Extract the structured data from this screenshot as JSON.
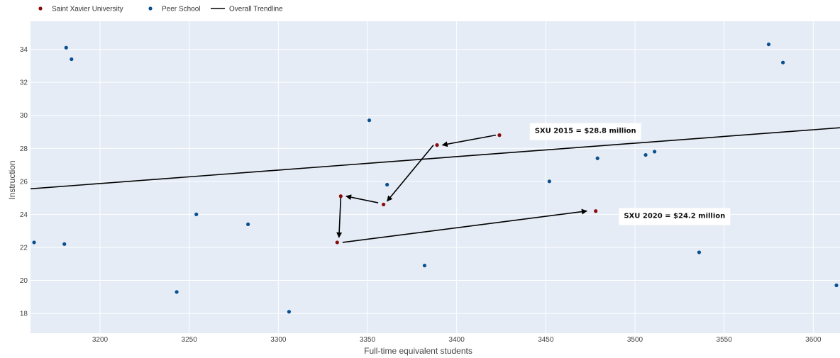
{
  "colors": {
    "plot_bg": "#e5ecf6",
    "grid": "#ffffff",
    "sxu": "#8b0a0a",
    "peer": "#0a4f8f",
    "trend": "#000000",
    "arrow": "#000000",
    "label_bg": "#ffffff"
  },
  "chart_data": {
    "type": "scatter",
    "xlabel": "Full-time equivalent students",
    "ylabel": "Instruction",
    "xlim": [
      3161,
      3615
    ],
    "ylim": [
      16.8,
      35.7
    ],
    "xticks": [
      3200,
      3250,
      3300,
      3350,
      3400,
      3450,
      3500,
      3550,
      3600
    ],
    "yticks": [
      18,
      20,
      22,
      24,
      26,
      28,
      30,
      32,
      34
    ],
    "grid": true,
    "legend_position": "top-left",
    "legend": [
      {
        "label": "Saint Xavier University",
        "kind": "marker",
        "color_key": "sxu"
      },
      {
        "label": "Peer School",
        "kind": "marker",
        "color_key": "peer"
      },
      {
        "label": "Overall Trendline",
        "kind": "line",
        "color_key": "trend"
      }
    ],
    "series": [
      {
        "name": "Saint Xavier University",
        "points": [
          {
            "x": 3424,
            "y": 28.8
          },
          {
            "x": 3389,
            "y": 28.2
          },
          {
            "x": 3359,
            "y": 24.6
          },
          {
            "x": 3335,
            "y": 25.1
          },
          {
            "x": 3333,
            "y": 22.3
          },
          {
            "x": 3478,
            "y": 24.2
          }
        ]
      },
      {
        "name": "Peer School",
        "points": [
          {
            "x": 3163,
            "y": 22.3
          },
          {
            "x": 3181,
            "y": 34.1
          },
          {
            "x": 3184,
            "y": 33.4
          },
          {
            "x": 3180,
            "y": 22.2
          },
          {
            "x": 3243,
            "y": 19.3
          },
          {
            "x": 3254,
            "y": 24.0
          },
          {
            "x": 3283,
            "y": 23.4
          },
          {
            "x": 3306,
            "y": 18.1
          },
          {
            "x": 3351,
            "y": 29.7
          },
          {
            "x": 3361,
            "y": 25.8
          },
          {
            "x": 3382,
            "y": 20.9
          },
          {
            "x": 3452,
            "y": 26.0
          },
          {
            "x": 3479,
            "y": 27.4
          },
          {
            "x": 3506,
            "y": 27.6
          },
          {
            "x": 3511,
            "y": 27.8
          },
          {
            "x": 3536,
            "y": 21.7
          },
          {
            "x": 3575,
            "y": 34.3
          },
          {
            "x": 3583,
            "y": 33.2
          },
          {
            "x": 3613,
            "y": 19.7
          }
        ]
      }
    ],
    "trendline": {
      "name": "Overall Trendline",
      "points": [
        {
          "x": 3161,
          "y": 25.55
        },
        {
          "x": 3615,
          "y": 29.25
        }
      ]
    },
    "arrows": [
      {
        "from": {
          "x": 3422,
          "y": 28.8
        },
        "to": {
          "x": 3392,
          "y": 28.2
        }
      },
      {
        "from": {
          "x": 3387,
          "y": 28.2
        },
        "to": {
          "x": 3361,
          "y": 24.8
        }
      },
      {
        "from": {
          "x": 3356,
          "y": 24.7
        },
        "to": {
          "x": 3338,
          "y": 25.1
        }
      },
      {
        "from": {
          "x": 3335,
          "y": 25.0
        },
        "to": {
          "x": 3334,
          "y": 22.6
        }
      },
      {
        "from": {
          "x": 3336,
          "y": 22.3
        },
        "to": {
          "x": 3473,
          "y": 24.2
        }
      }
    ],
    "annotations": [
      {
        "text": "SXU 2015 = $28.8 million",
        "x": 3441,
        "y": 29.1
      },
      {
        "text": "SXU 2020 = $24.2 million",
        "x": 3491,
        "y": 23.95
      }
    ]
  }
}
